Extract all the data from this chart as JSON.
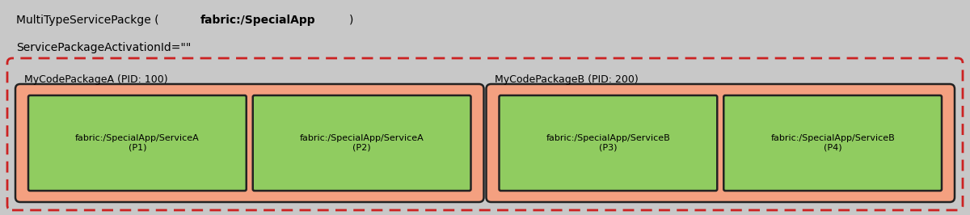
{
  "bg_color": "#c8c8c8",
  "outer_border_color": "#cc2222",
  "outer_fill": "#c8c8c8",
  "pkg_a_fill": "#f4a080",
  "pkg_b_fill": "#f4a080",
  "service_fill": "#90cc60",
  "service_border": "#222222",
  "pkg_border": "#222222",
  "title_line1_normal1": "MultiTypeServicePackge (",
  "title_line1_bold": "fabric:/SpecialApp",
  "title_line1_normal2": ")",
  "title_line2": "ServicePackageActivationId=\"\"",
  "pkg_a_label": "MyCodePackageA (PID: 100)",
  "pkg_b_label": "MyCodePackageB (PID: 200)",
  "service_labels": [
    "fabric:/SpecialApp/ServiceA\n(P1)",
    "fabric:/SpecialApp/ServiceA\n(P2)",
    "fabric:/SpecialApp/ServiceB\n(P3)",
    "fabric:/SpecialApp/ServiceB\n(P4)"
  ],
  "font_size_title": 10,
  "font_size_pkg": 9,
  "font_size_service": 8,
  "figwidth": 12.0,
  "figheight": 2.66,
  "dpi": 100
}
